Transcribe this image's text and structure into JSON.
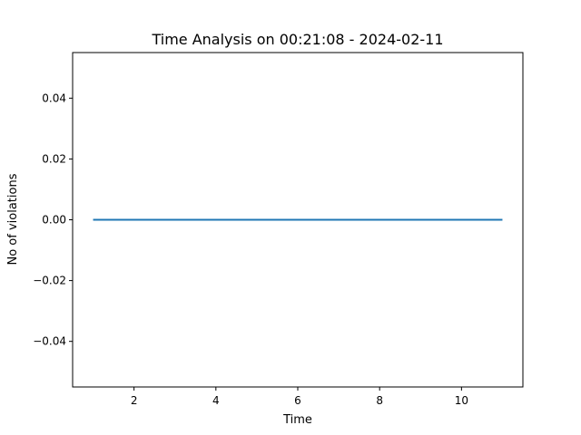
{
  "chart_data": {
    "type": "line",
    "title": "Time Analysis on 00:21:08 - 2024-02-11",
    "xlabel": "Time",
    "ylabel": "No of violations",
    "xlim": [
      0.5,
      11.5
    ],
    "ylim": [
      -0.055,
      0.055
    ],
    "xticks": [
      2,
      4,
      6,
      8,
      10
    ],
    "xtick_labels": [
      "2",
      "4",
      "6",
      "8",
      "10"
    ],
    "yticks": [
      -0.04,
      -0.02,
      0.0,
      0.02,
      0.04
    ],
    "ytick_labels": [
      "−0.04",
      "−0.02",
      "0.00",
      "0.02",
      "0.04"
    ],
    "grid": false,
    "series": [
      {
        "x": [
          1,
          2,
          3,
          4,
          5,
          6,
          7,
          8,
          9,
          10,
          11
        ],
        "y": [
          0,
          0,
          0,
          0,
          0,
          0,
          0,
          0,
          0,
          0,
          0
        ],
        "color": "#1f77b4"
      }
    ]
  }
}
